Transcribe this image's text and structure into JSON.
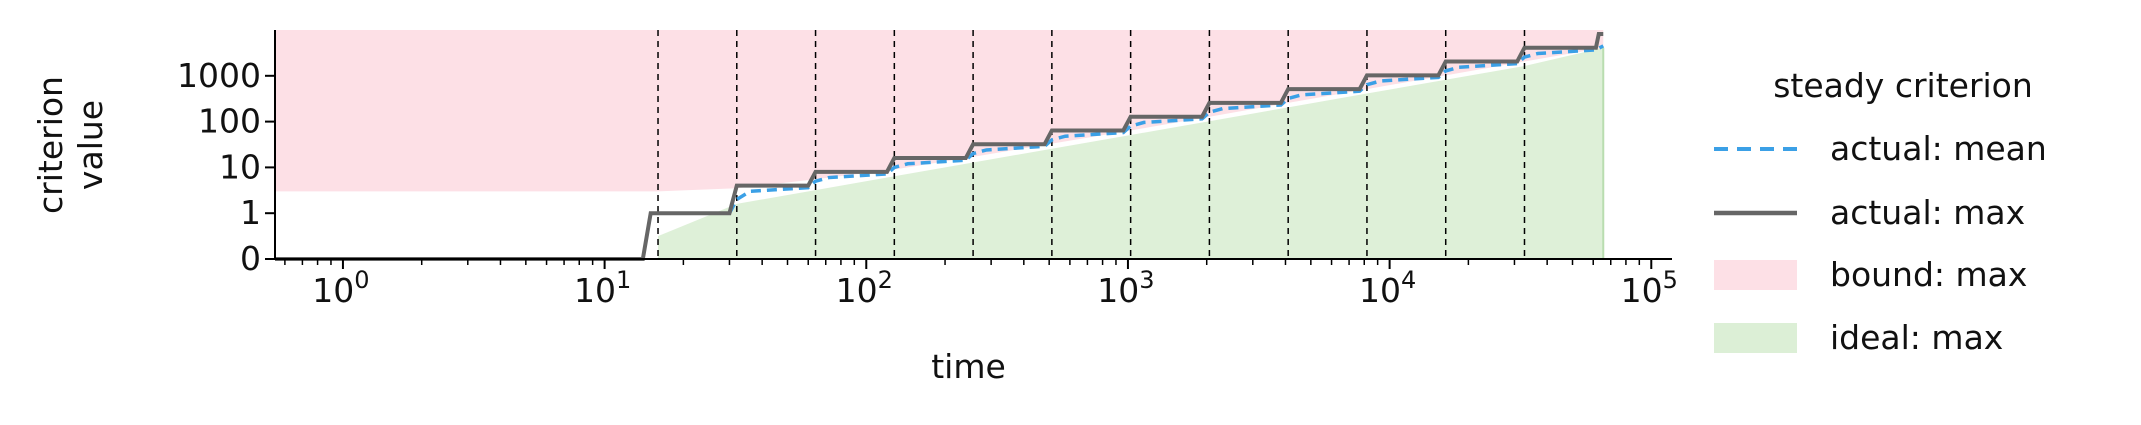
{
  "chart_data": {
    "type": "line",
    "xlabel": "time",
    "ylabel_lines": [
      "criterion",
      "value"
    ],
    "x_scale": "log",
    "y_scale": "symlog",
    "xlim": [
      0.55,
      120000
    ],
    "ylim": [
      0,
      10000
    ],
    "x_ticks": [
      {
        "base": "10",
        "exp": "0",
        "value": 1
      },
      {
        "base": "10",
        "exp": "1",
        "value": 10
      },
      {
        "base": "10",
        "exp": "2",
        "value": 100
      },
      {
        "base": "10",
        "exp": "3",
        "value": 1000
      },
      {
        "base": "10",
        "exp": "4",
        "value": 10000
      },
      {
        "base": "10",
        "exp": "5",
        "value": 100000
      }
    ],
    "y_ticks": [
      {
        "label": "0",
        "value": 0
      },
      {
        "label": "1",
        "value": 1
      },
      {
        "label": "10",
        "value": 10
      },
      {
        "label": "100",
        "value": 100
      },
      {
        "label": "1000",
        "value": 1000
      }
    ],
    "vlines": [
      16,
      32,
      64,
      128,
      256,
      512,
      1024,
      2048,
      4096,
      8192,
      16384,
      32768
    ],
    "grid": false,
    "legend": {
      "title": "steady criterion",
      "placement": "right-outside",
      "entries": [
        {
          "label": "actual: mean",
          "style": "dashed-line",
          "color": "#3ba0e6"
        },
        {
          "label": "actual: max",
          "style": "solid-line",
          "color": "#666666"
        },
        {
          "label": "bound: max",
          "style": "patch",
          "color": "#fde0e6"
        },
        {
          "label": "ideal: max",
          "style": "patch",
          "color": "#dcefd6"
        }
      ]
    },
    "series": [
      {
        "name": "actual: max",
        "color": "#666666",
        "style": "solid",
        "x": [
          0.55,
          14,
          15,
          30,
          32,
          60,
          64,
          120,
          128,
          240,
          256,
          480,
          512,
          960,
          1024,
          1920,
          2048,
          3840,
          4096,
          7680,
          8192,
          15360,
          16384,
          30720,
          32768,
          61440,
          63000,
          65536
        ],
        "y": [
          0,
          0,
          1,
          1,
          4,
          4,
          8,
          8,
          16,
          16,
          32,
          32,
          64,
          64,
          128,
          128,
          256,
          256,
          512,
          512,
          1024,
          1024,
          2048,
          2048,
          4096,
          4096,
          8192,
          8192
        ]
      },
      {
        "name": "actual: mean",
        "color": "#3ba0e6",
        "style": "dashed",
        "x": [
          30,
          32,
          36,
          60,
          64,
          72,
          120,
          128,
          144,
          240,
          256,
          288,
          480,
          512,
          576,
          960,
          1024,
          1152,
          1920,
          2048,
          2304,
          3840,
          4096,
          4608,
          7680,
          8192,
          9216,
          15360,
          16384,
          18432,
          30720,
          32768,
          36864,
          61440,
          65536
        ],
        "y": [
          1,
          2,
          3,
          3.6,
          5,
          6,
          7.2,
          10,
          12,
          14.4,
          20,
          24,
          28.8,
          40,
          48,
          57.6,
          80,
          96,
          115,
          160,
          192,
          230,
          320,
          384,
          461,
          640,
          768,
          922,
          1280,
          1536,
          1843,
          2560,
          3072,
          3686,
          4500
        ]
      },
      {
        "name": "bound: max",
        "color": "#fde0e6",
        "style": "fill-band",
        "x": [
          0.55,
          16,
          32,
          64,
          128,
          256,
          512,
          1024,
          2048,
          4096,
          8192,
          16384,
          32768,
          65536
        ],
        "y_low": [
          3,
          3,
          3.5,
          5.5,
          9,
          17,
          33,
          64,
          128,
          256,
          512,
          1024,
          2048,
          4096
        ],
        "y_high": [
          10000,
          10000,
          10000,
          10000,
          10000,
          10000,
          10000,
          10000,
          10000,
          10000,
          10000,
          10000,
          10000,
          10000
        ]
      },
      {
        "name": "ideal: max",
        "color": "#dcefd6",
        "style": "fill-under",
        "x": [
          16,
          32,
          64,
          128,
          256,
          512,
          1024,
          2048,
          4096,
          8192,
          16384,
          32768,
          65536
        ],
        "y": [
          0.5,
          1.6,
          3.2,
          6.4,
          12.8,
          25.6,
          51,
          102,
          205,
          410,
          819,
          1638,
          4096
        ]
      }
    ]
  }
}
